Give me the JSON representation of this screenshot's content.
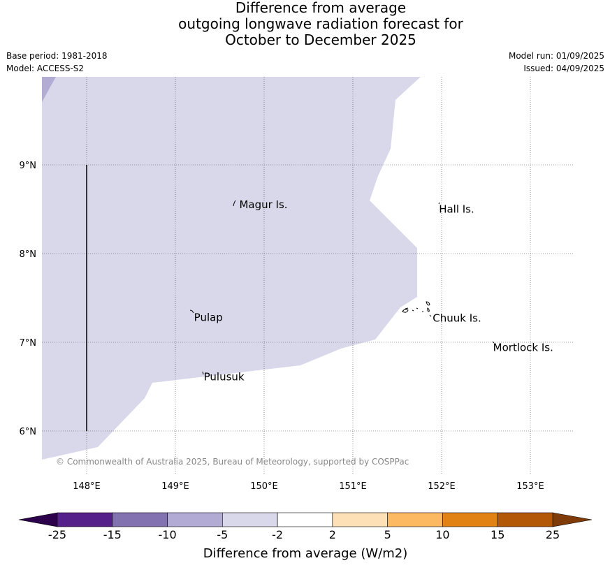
{
  "title": {
    "line1": "Difference from average",
    "line2": "outgoing longwave radiation forecast for",
    "line3": "October to December 2025"
  },
  "meta": {
    "base_period": "Base period: 1981-2018",
    "model": "Model: ACCESS-S2",
    "model_run": "Model run: 01/09/2025",
    "issued": "Issued: 04/09/2025"
  },
  "map": {
    "lat_ticks": [
      "9°N",
      "8°N",
      "7°N",
      "6°N"
    ],
    "lon_ticks": [
      "148°E",
      "149°E",
      "150°E",
      "151°E",
      "152°E",
      "153°E"
    ],
    "places": [
      {
        "name": "Magur Is.",
        "lon": 149.72,
        "lat": 8.55
      },
      {
        "name": "Hall Is.",
        "lon": 151.97,
        "lat": 8.5
      },
      {
        "name": "Pulap",
        "lon": 149.21,
        "lat": 7.28
      },
      {
        "name": "Chuuk Is.",
        "lon": 151.9,
        "lat": 7.27
      },
      {
        "name": "Mortlock Is.",
        "lon": 152.58,
        "lat": 6.94
      },
      {
        "name": "Pulusuk",
        "lon": 149.32,
        "lat": 6.61
      }
    ],
    "copyright": "© Commonwealth of Australia 2025, Bureau of Meteorology, supported by COSPPac",
    "shading_color": "#d8d8ea",
    "shading_dark_color": "#b2acd5",
    "shading_category": "-5 to -2"
  },
  "colorbar": {
    "title": "Difference from average (W/m2)",
    "labels": [
      "-25",
      "-15",
      "-10",
      "-5",
      "-2",
      "2",
      "5",
      "10",
      "15",
      "25"
    ],
    "colors": [
      "#55208a",
      "#8273b0",
      "#b2acd5",
      "#d8d8ea",
      "#ffffff",
      "#fde0b6",
      "#fdb862",
      "#e08214",
      "#b35807"
    ],
    "low_extend_color": "#2d004b",
    "high_extend_color": "#7f3b08"
  }
}
